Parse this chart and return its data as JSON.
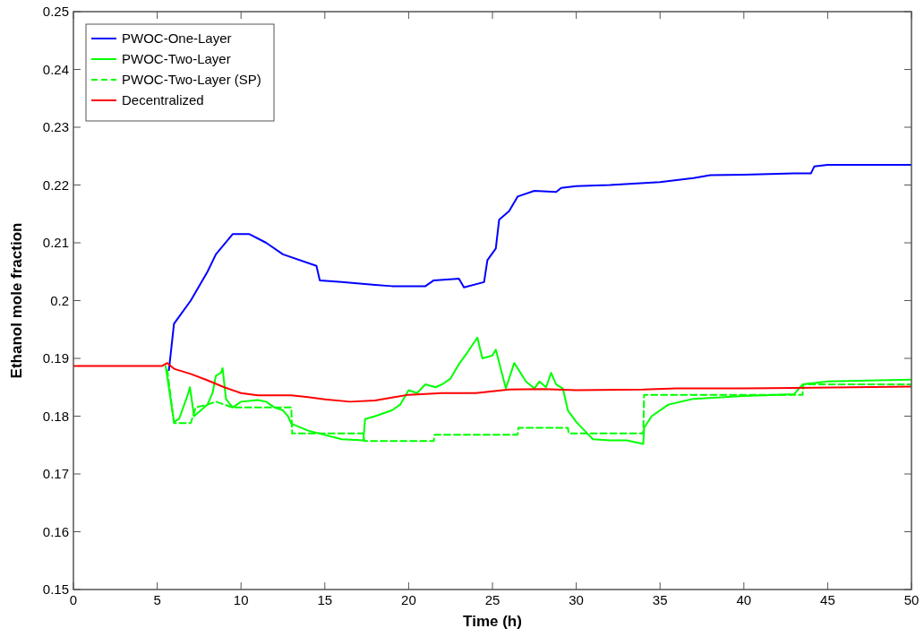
{
  "chart_data": {
    "type": "line",
    "xlabel": "Time (h)",
    "ylabel": "Ethanol mole fraction",
    "xlim": [
      0,
      50
    ],
    "ylim": [
      0.15,
      0.25
    ],
    "xticks": [
      0,
      5,
      10,
      15,
      20,
      25,
      30,
      35,
      40,
      45,
      50
    ],
    "yticks": [
      0.15,
      0.16,
      0.17,
      0.18,
      0.19,
      0.2,
      0.21,
      0.22,
      0.23,
      0.24,
      0.25
    ],
    "legend": "top left",
    "grid": false,
    "marker": "none",
    "series": [
      {
        "name": "PWOC-One-Layer",
        "color": "#0000ff",
        "line_style": "solid",
        "x": [
          5.7,
          6,
          7,
          8,
          8.5,
          9.5,
          10.5,
          11.5,
          12.5,
          14.5,
          14.7,
          16,
          18,
          19,
          21,
          21.5,
          23,
          23.3,
          24.5,
          24.7,
          25.2,
          25.4,
          26,
          26.5,
          27.5,
          28.8,
          29.1,
          30,
          32,
          35,
          37,
          38,
          40,
          43,
          44,
          44.2,
          45,
          50
        ],
        "values": [
          0.188,
          0.196,
          0.2,
          0.205,
          0.208,
          0.2115,
          0.2115,
          0.21,
          0.208,
          0.206,
          0.2035,
          0.2032,
          0.2027,
          0.2025,
          0.2025,
          0.2035,
          0.2038,
          0.2023,
          0.2032,
          0.207,
          0.209,
          0.214,
          0.2155,
          0.218,
          0.219,
          0.2188,
          0.2195,
          0.2198,
          0.22,
          0.2205,
          0.2212,
          0.2217,
          0.2218,
          0.222,
          0.222,
          0.2232,
          0.2235,
          0.2235
        ]
      },
      {
        "name": "PWOC-Two-Layer",
        "color": "#00ff00",
        "line_style": "solid",
        "x": [
          5.5,
          6,
          6.3,
          6.8,
          6.95,
          7.2,
          7.6,
          8,
          8.3,
          8.5,
          8.8,
          8.9,
          9.1,
          9.5,
          10,
          11,
          11.5,
          12,
          12.5,
          12.8,
          13,
          14,
          16,
          17.3,
          17.4,
          18,
          19,
          19.5,
          20,
          20.5,
          21,
          21.6,
          22,
          22.5,
          23,
          23.5,
          24.1,
          24.4,
          25,
          25.2,
          25.8,
          26.3,
          27,
          27.5,
          27.8,
          28.2,
          28.5,
          28.8,
          29.2,
          29.5,
          30,
          30.5,
          31,
          32,
          33,
          34,
          34.05,
          34.5,
          35.5,
          37,
          40,
          43,
          43.5,
          45,
          48,
          50
        ],
        "values": [
          0.1887,
          0.179,
          0.1795,
          0.1835,
          0.185,
          0.18,
          0.181,
          0.182,
          0.184,
          0.187,
          0.1875,
          0.1883,
          0.183,
          0.1815,
          0.1825,
          0.1828,
          0.1825,
          0.1815,
          0.181,
          0.18,
          0.1787,
          0.1775,
          0.176,
          0.1758,
          0.1795,
          0.18,
          0.181,
          0.182,
          0.1845,
          0.184,
          0.1855,
          0.185,
          0.1855,
          0.1865,
          0.189,
          0.191,
          0.1936,
          0.19,
          0.1905,
          0.1915,
          0.1848,
          0.1892,
          0.186,
          0.1848,
          0.186,
          0.185,
          0.1875,
          0.1855,
          0.1848,
          0.181,
          0.179,
          0.1775,
          0.176,
          0.1758,
          0.1758,
          0.1752,
          0.178,
          0.18,
          0.182,
          0.183,
          0.1835,
          0.1838,
          0.1855,
          0.186,
          0.1862,
          0.1863
        ]
      },
      {
        "name": "PWOC-Two-Layer (SP)",
        "color": "#00ff00",
        "line_style": "dashed",
        "x": [
          5.6,
          6,
          7,
          7.3,
          8,
          8.5,
          9.5,
          13,
          13.05,
          17.3,
          17.35,
          21.5,
          21.55,
          26.5,
          26.55,
          29.5,
          29.55,
          34,
          34.05,
          43.5,
          43.55,
          50
        ],
        "values": [
          0.188,
          0.1788,
          0.1788,
          0.1815,
          0.182,
          0.1825,
          0.1815,
          0.1815,
          0.177,
          0.177,
          0.1757,
          0.1757,
          0.1768,
          0.1768,
          0.178,
          0.178,
          0.177,
          0.177,
          0.1837,
          0.1837,
          0.1855,
          0.1855
        ]
      },
      {
        "name": "Decentralized",
        "color": "#ff0000",
        "line_style": "solid",
        "x": [
          0,
          5.3,
          5.6,
          6,
          7,
          8,
          9,
          10,
          11,
          13,
          14,
          15,
          16.5,
          18,
          19,
          20,
          22,
          24,
          26,
          28,
          30,
          34,
          36,
          40,
          43,
          50
        ],
        "values": [
          0.1887,
          0.1887,
          0.1892,
          0.1882,
          0.1873,
          0.1862,
          0.185,
          0.184,
          0.1836,
          0.1836,
          0.1833,
          0.1829,
          0.1825,
          0.1827,
          0.1832,
          0.1837,
          0.184,
          0.184,
          0.1846,
          0.1847,
          0.1845,
          0.1846,
          0.1848,
          0.1848,
          0.1849,
          0.1851
        ]
      }
    ]
  }
}
